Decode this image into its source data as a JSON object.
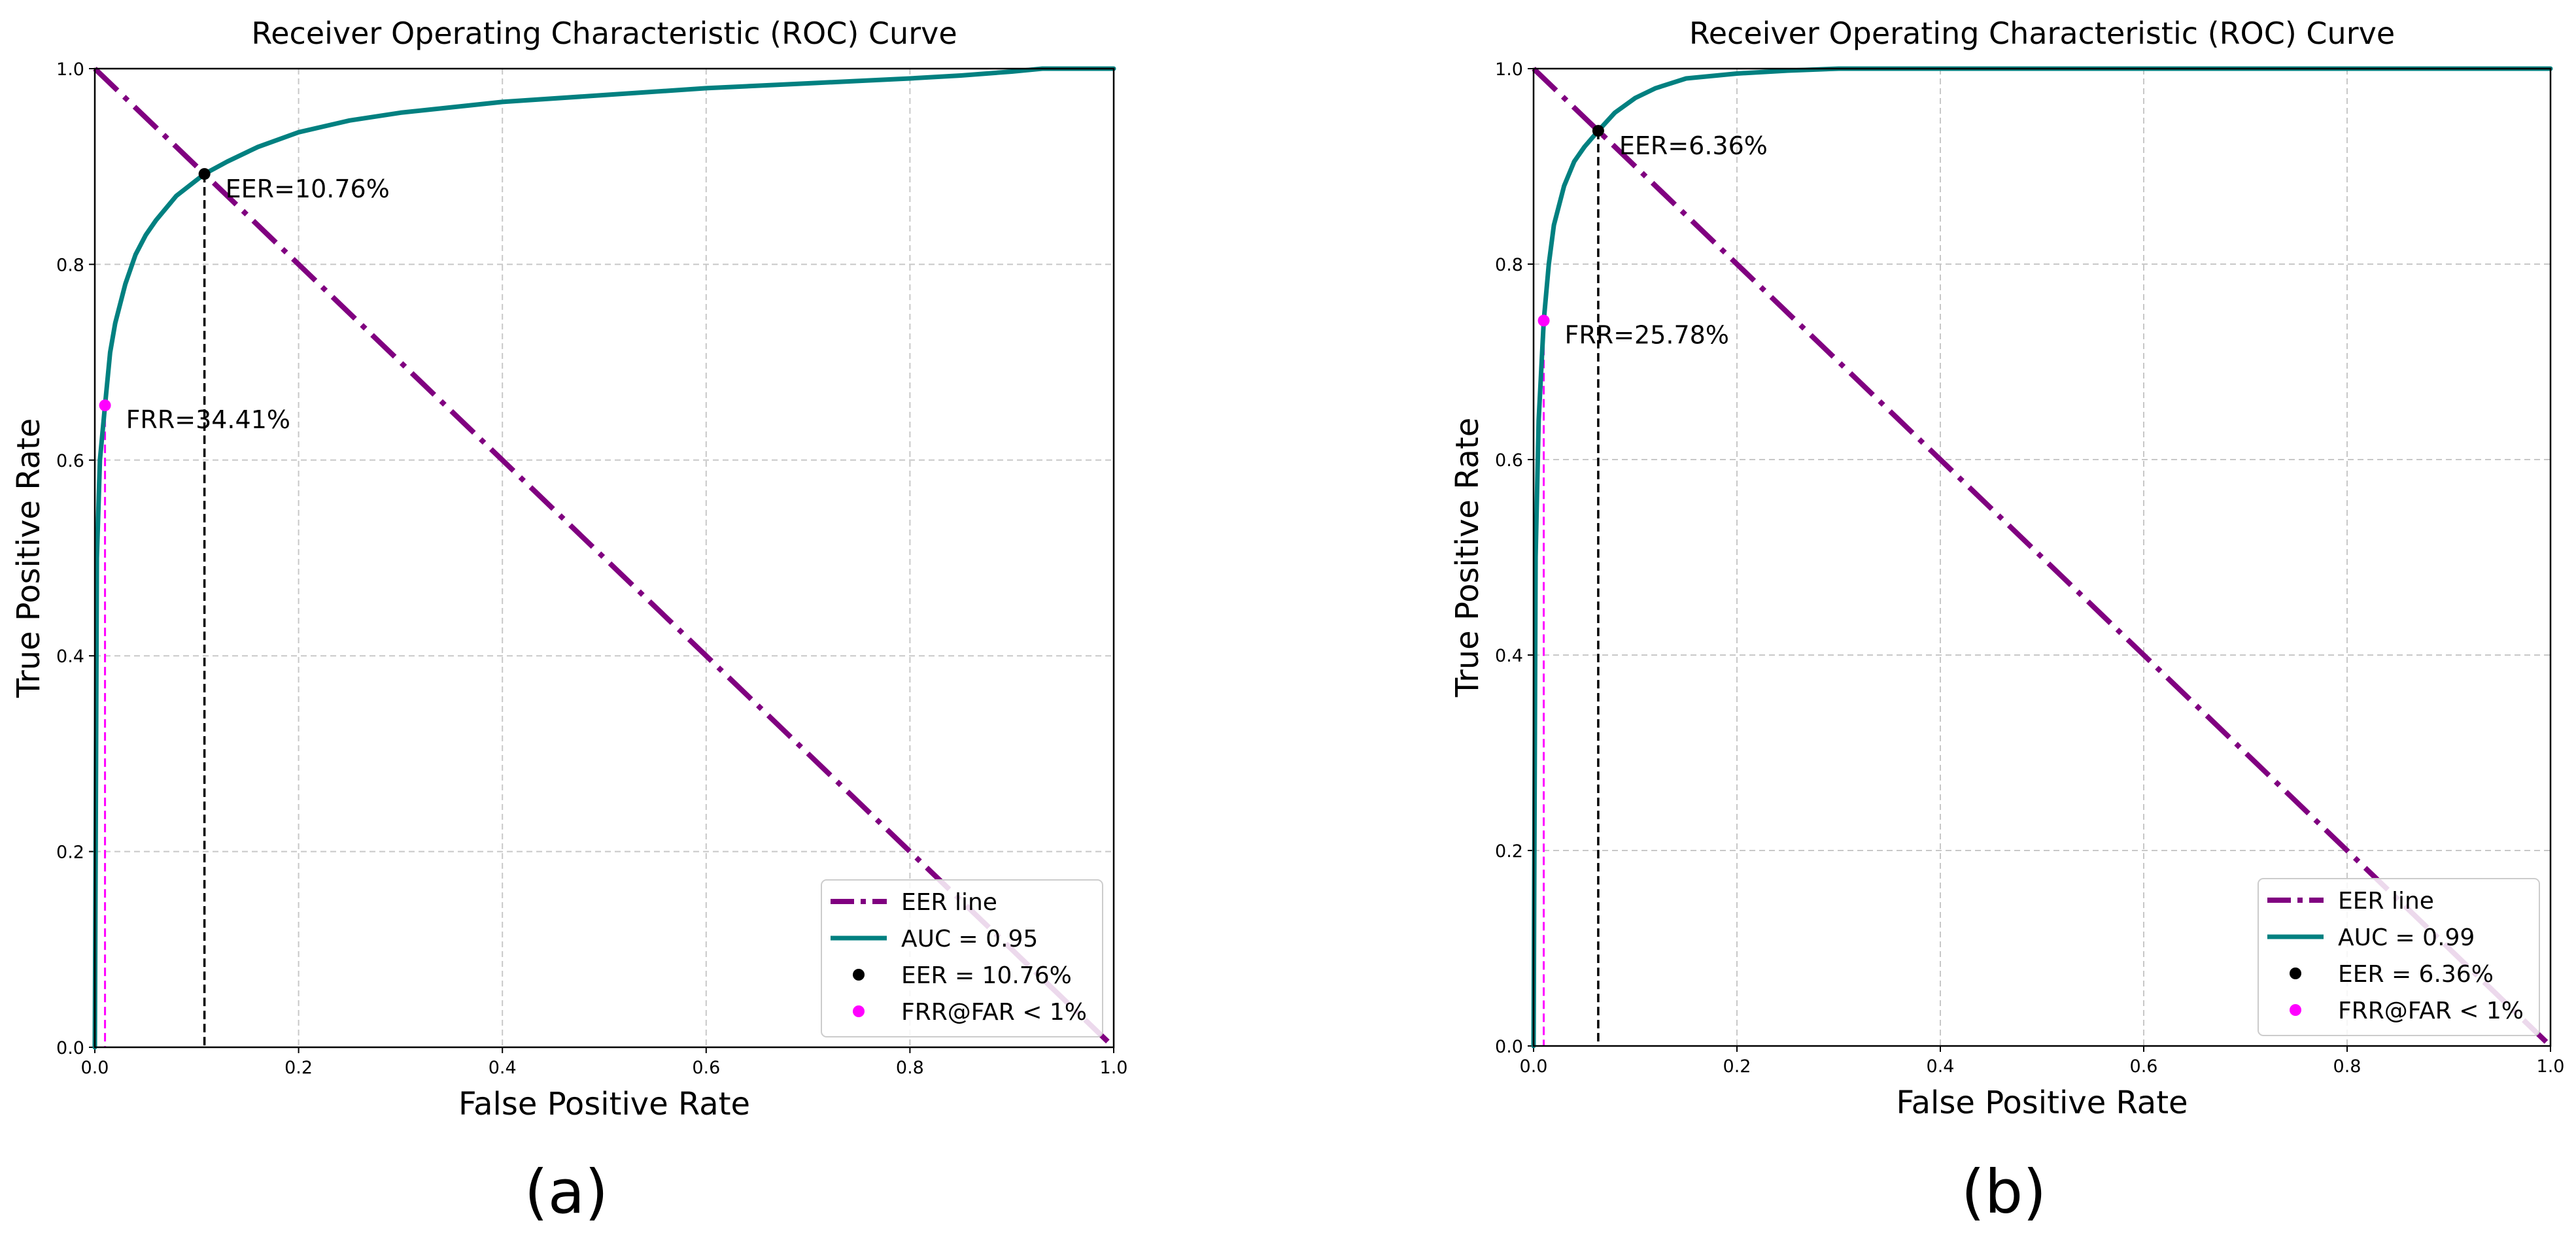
{
  "chart_data": [
    {
      "type": "line",
      "panel": "(a)",
      "title": "Receiver Operating Characteristic (ROC) Curve",
      "xlabel": "False Positive Rate",
      "ylabel": "True Positive Rate",
      "xlim": [
        0,
        1
      ],
      "ylim": [
        0,
        1
      ],
      "x_ticks": [
        "0.0",
        "0.2",
        "0.4",
        "0.6",
        "0.8",
        "1.0"
      ],
      "y_ticks": [
        "0.0",
        "0.2",
        "0.4",
        "0.6",
        "0.8",
        "1.0"
      ],
      "grid": true,
      "legend_position": "lower-right",
      "series": [
        {
          "name": "EER line",
          "style": "dash-dot",
          "color": "#800080",
          "x": [
            0,
            1
          ],
          "y": [
            1,
            0
          ]
        },
        {
          "name": "AUC = 0.95",
          "style": "solid",
          "color": "#008080",
          "x": [
            0,
            0.002,
            0.005,
            0.01,
            0.015,
            0.02,
            0.03,
            0.04,
            0.05,
            0.06,
            0.08,
            0.1076,
            0.13,
            0.16,
            0.2,
            0.25,
            0.3,
            0.4,
            0.5,
            0.6,
            0.7,
            0.8,
            0.85,
            0.9,
            0.93,
            1.0
          ],
          "y": [
            0,
            0.5,
            0.6,
            0.6559,
            0.71,
            0.74,
            0.78,
            0.81,
            0.83,
            0.845,
            0.87,
            0.8924,
            0.905,
            0.92,
            0.935,
            0.947,
            0.955,
            0.966,
            0.973,
            0.98,
            0.985,
            0.99,
            0.993,
            0.997,
            1.0,
            1.0
          ]
        },
        {
          "name": "EER = 10.76%",
          "style": "marker",
          "color": "#000000",
          "x": [
            0.1076
          ],
          "y": [
            0.8924
          ]
        },
        {
          "name": "FRR@FAR < 1%",
          "style": "marker",
          "color": "#ff00ff",
          "x": [
            0.01
          ],
          "y": [
            0.6559
          ]
        }
      ],
      "annotations": [
        {
          "text": "EER=10.76%",
          "x": 0.1076,
          "y": 0.8924
        },
        {
          "text": "FRR=34.41%",
          "x": 0.01,
          "y": 0.6559
        }
      ],
      "caption": "(a)"
    },
    {
      "type": "line",
      "panel": "(b)",
      "title": "Receiver Operating Characteristic (ROC) Curve",
      "xlabel": "False Positive Rate",
      "ylabel": "True Positive Rate",
      "xlim": [
        0,
        1
      ],
      "ylim": [
        0,
        1
      ],
      "x_ticks": [
        "0.0",
        "0.2",
        "0.4",
        "0.6",
        "0.8",
        "1.0"
      ],
      "y_ticks": [
        "0.0",
        "0.2",
        "0.4",
        "0.6",
        "0.8",
        "1.0"
      ],
      "grid": true,
      "legend_position": "lower-right",
      "series": [
        {
          "name": "EER line",
          "style": "dash-dot",
          "color": "#800080",
          "x": [
            0,
            1
          ],
          "y": [
            1,
            0
          ]
        },
        {
          "name": "AUC = 0.99",
          "style": "solid",
          "color": "#008080",
          "x": [
            0,
            0.002,
            0.005,
            0.01,
            0.015,
            0.02,
            0.03,
            0.04,
            0.05,
            0.0636,
            0.08,
            0.1,
            0.12,
            0.15,
            0.2,
            0.25,
            0.3,
            0.4,
            1.0
          ],
          "y": [
            0,
            0.5,
            0.64,
            0.7422,
            0.8,
            0.84,
            0.88,
            0.905,
            0.92,
            0.9364,
            0.955,
            0.97,
            0.98,
            0.99,
            0.995,
            0.998,
            1.0,
            1.0,
            1.0
          ]
        },
        {
          "name": "EER = 6.36%",
          "style": "marker",
          "color": "#000000",
          "x": [
            0.0636
          ],
          "y": [
            0.9364
          ]
        },
        {
          "name": "FRR@FAR < 1%",
          "style": "marker",
          "color": "#ff00ff",
          "x": [
            0.01
          ],
          "y": [
            0.7422
          ]
        }
      ],
      "annotations": [
        {
          "text": "EER=6.36%",
          "x": 0.0636,
          "y": 0.9364
        },
        {
          "text": "FRR=25.78%",
          "x": 0.01,
          "y": 0.7422
        }
      ],
      "caption": "(b)"
    }
  ]
}
